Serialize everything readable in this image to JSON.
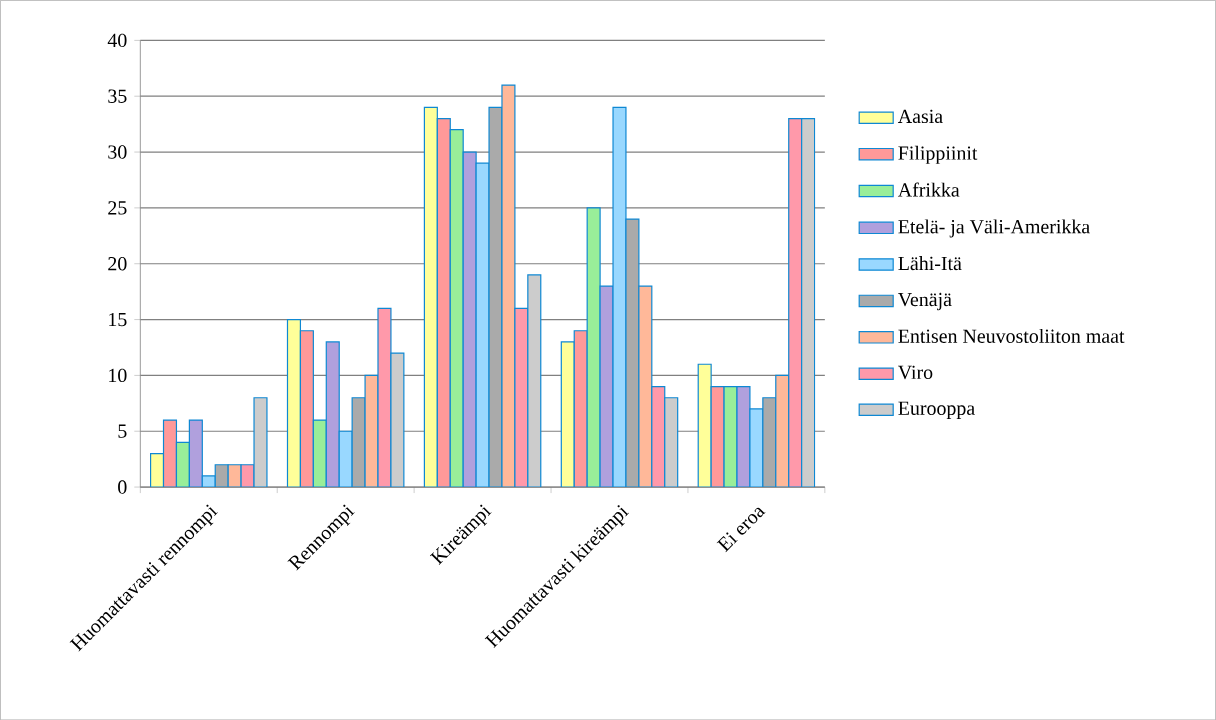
{
  "chart_data": {
    "type": "bar",
    "categories": [
      "Huomattavasti rennompi",
      "Rennompi",
      "Kireämpi",
      "Huomattavasti kireämpi",
      "Ei eroa"
    ],
    "ylim": [
      0,
      40
    ],
    "yticks": [
      0,
      5,
      10,
      15,
      20,
      25,
      30,
      35,
      40
    ],
    "grid": "y",
    "legend": "right",
    "series": [
      {
        "name": "Aasia",
        "color": "#ffff99",
        "values": [
          3,
          15,
          34,
          13,
          11
        ]
      },
      {
        "name": "Filippiinit",
        "color": "#ff9999",
        "values": [
          6,
          14,
          33,
          14,
          9
        ]
      },
      {
        "name": "Afrikka",
        "color": "#99ee99",
        "values": [
          4,
          6,
          32,
          25,
          9
        ]
      },
      {
        "name": "Etelä- ja Väli-Amerikka",
        "color": "#b0a0dd",
        "values": [
          6,
          13,
          30,
          18,
          9
        ]
      },
      {
        "name": "Lähi-Itä",
        "color": "#99d8ff",
        "values": [
          1,
          5,
          29,
          34,
          7
        ]
      },
      {
        "name": "Venäjä",
        "color": "#aaaaaa",
        "values": [
          2,
          8,
          34,
          24,
          8
        ]
      },
      {
        "name": "Entisen Neuvostoliiton maat",
        "color": "#ffb899",
        "values": [
          2,
          10,
          36,
          18,
          10
        ]
      },
      {
        "name": "Viro",
        "color": "#ff99aa",
        "values": [
          2,
          16,
          16,
          9,
          33
        ]
      },
      {
        "name": "Eurooppa",
        "color": "#cccccc",
        "values": [
          8,
          12,
          19,
          8,
          33
        ]
      }
    ]
  }
}
